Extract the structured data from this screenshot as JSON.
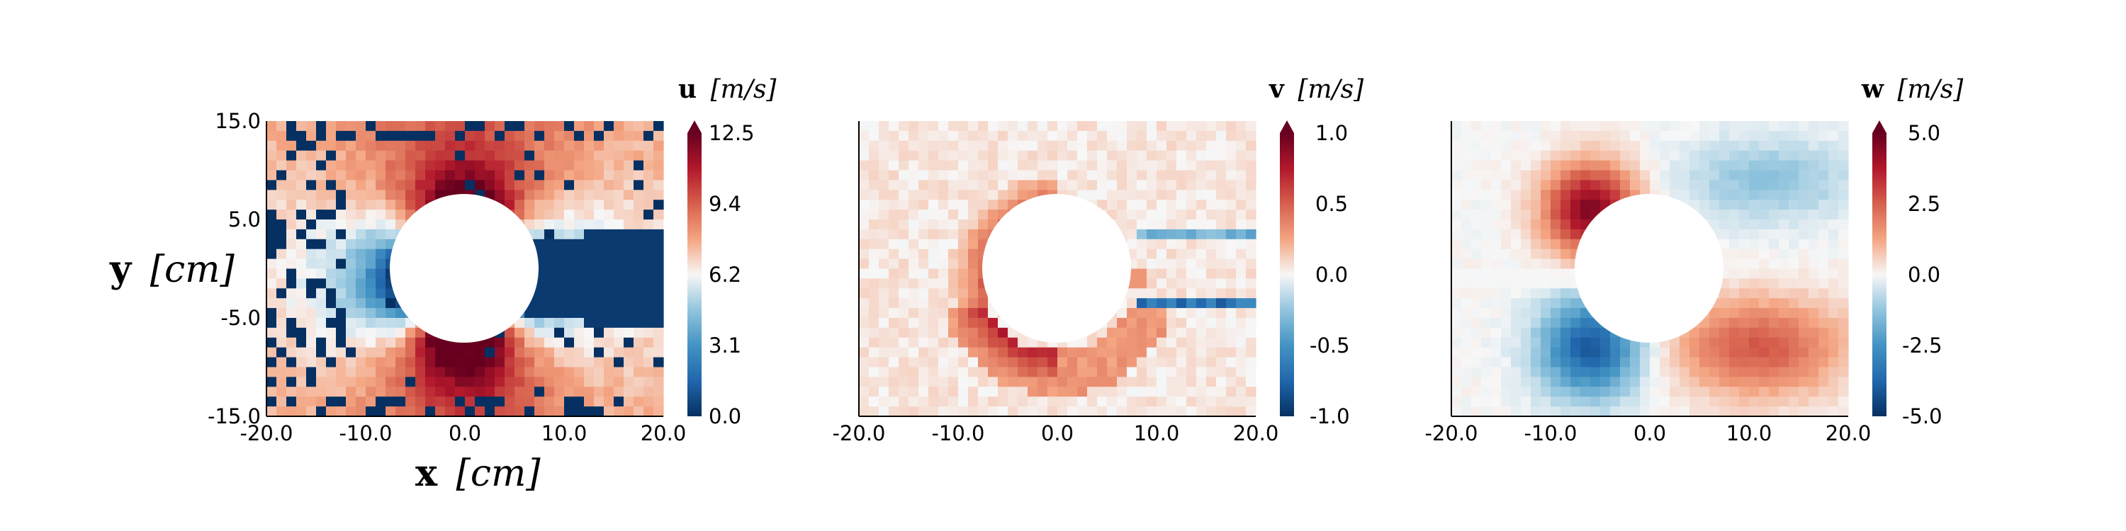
{
  "chart_data": [
    {
      "type": "heatmap",
      "field": "u",
      "title_var": "u",
      "title_unit": "[m/s]",
      "xlabel_var": "x",
      "xlabel_unit": "[cm]",
      "ylabel_var": "y",
      "ylabel_unit": "[cm]",
      "xlim": [
        -20.0,
        20.0
      ],
      "ylim": [
        -15.0,
        15.0
      ],
      "x_ticks": [
        "-20.0",
        "-10.0",
        "0.0",
        "10.0",
        "20.0"
      ],
      "y_ticks": [
        "15.0",
        "5.0",
        "-5.0",
        "-15.0"
      ],
      "colorbar_range": [
        0.0,
        12.5
      ],
      "colorbar_ticks": [
        "12.5",
        "9.4",
        "6.2",
        "3.1",
        "0.0"
      ],
      "colormap": "RdBu_r",
      "cylinder": {
        "center": [
          0.0,
          -1.0
        ],
        "radius": 7.5
      },
      "grid_cols": 40,
      "grid_rows": 30
    },
    {
      "type": "heatmap",
      "field": "v",
      "title_var": "v",
      "title_unit": "[m/s]",
      "xlim": [
        -20.0,
        20.0
      ],
      "ylim": [
        -15.0,
        15.0
      ],
      "x_ticks": [
        "-20.0",
        "-10.0",
        "0.0",
        "10.0",
        "20.0"
      ],
      "colorbar_range": [
        -1.0,
        1.0
      ],
      "colorbar_ticks": [
        "1.0",
        "0.5",
        "0.0",
        "-0.5",
        "-1.0"
      ],
      "colormap": "RdBu_r",
      "cylinder": {
        "center": [
          0.0,
          -1.0
        ],
        "radius": 7.5
      },
      "grid_cols": 40,
      "grid_rows": 30
    },
    {
      "type": "heatmap",
      "field": "w",
      "title_var": "w",
      "title_unit": "[m/s]",
      "xlim": [
        -20.0,
        20.0
      ],
      "ylim": [
        -15.0,
        15.0
      ],
      "x_ticks": [
        "-20.0",
        "-10.0",
        "0.0",
        "10.0",
        "20.0"
      ],
      "colorbar_range": [
        -5.0,
        5.0
      ],
      "colorbar_ticks": [
        "5.0",
        "2.5",
        "0.0",
        "-2.5",
        "-5.0"
      ],
      "colormap": "RdBu_r",
      "cylinder": {
        "center": [
          0.0,
          -1.0
        ],
        "radius": 7.5
      },
      "grid_cols": 40,
      "grid_rows": 30
    }
  ],
  "colors": {
    "dark_blue": "#053061",
    "blue": "#2166ac",
    "light_blue": "#92c5de",
    "neutral": "#f7f7f7",
    "light_red": "#f4a582",
    "red": "#d6604d",
    "dark_red": "#b2182b",
    "darkest_red": "#67001f"
  }
}
